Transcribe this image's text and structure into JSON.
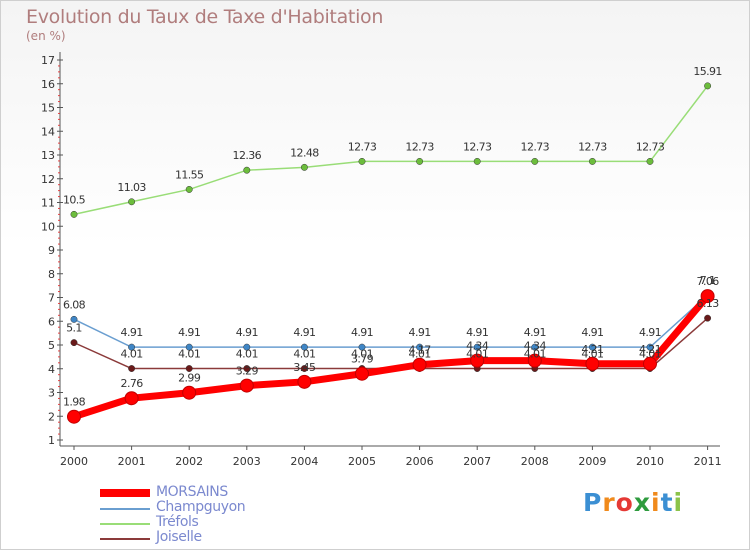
{
  "title": "Evolution du Taux de Taxe d'Habitation",
  "unit": "(en %)",
  "logo": {
    "text": "Proxiti",
    "colors": [
      "#3b8fd3",
      "#f08a1c",
      "#e53935",
      "#2e9b3e",
      "#f08a1c",
      "#3b8fd3",
      "#8bc34a"
    ]
  },
  "chart_data": {
    "type": "line",
    "title": "Evolution du Taux de Taxe d'Habitation",
    "xlabel": "",
    "ylabel": "(en %)",
    "ylim": [
      1,
      17
    ],
    "yticks": [
      "1",
      "2",
      "3",
      "4",
      "5",
      "6",
      "7",
      "8",
      "9",
      "10",
      "11",
      "12",
      "13",
      "14",
      "15",
      "16",
      "17"
    ],
    "categories": [
      "2000",
      "2001",
      "2002",
      "2003",
      "2004",
      "2005",
      "2006",
      "2007",
      "2008",
      "2009",
      "2010",
      "2011"
    ],
    "series": [
      {
        "name": "MORSAINS",
        "color": "#ff0000",
        "markerColor": "#e00000",
        "weight": "heavy",
        "values": [
          1.98,
          2.76,
          2.99,
          3.29,
          3.45,
          3.79,
          4.17,
          4.34,
          4.34,
          4.21,
          4.21,
          7.06
        ],
        "labels": [
          "1.98",
          "2.76",
          "2.99",
          "3.29",
          "3.45",
          "3.79",
          "4.17",
          "4.34",
          "4.34",
          "4.21",
          "4.21",
          "7.06"
        ]
      },
      {
        "name": "Champguyon",
        "color": "#6a9ed0",
        "markerColor": "#3f86c6",
        "weight": "thin",
        "values": [
          6.08,
          4.91,
          4.91,
          4.91,
          4.91,
          4.91,
          4.91,
          4.91,
          4.91,
          4.91,
          4.91,
          7.1
        ],
        "labels": [
          "6.08",
          "4.91",
          "4.91",
          "4.91",
          "4.91",
          "4.91",
          "4.91",
          "4.91",
          "4.91",
          "4.91",
          "4.91",
          "7.1"
        ]
      },
      {
        "name": "Tréfols",
        "color": "#99dd77",
        "markerColor": "#6cbd3c",
        "weight": "thin",
        "values": [
          10.5,
          11.03,
          11.55,
          12.36,
          12.48,
          12.73,
          12.73,
          12.73,
          12.73,
          12.73,
          12.73,
          15.91
        ],
        "labels": [
          "10.5",
          "11.03",
          "11.55",
          "12.36",
          "12.48",
          "12.73",
          "12.73",
          "12.73",
          "12.73",
          "12.73",
          "12.73",
          "15.91"
        ]
      },
      {
        "name": "Joiselle",
        "color": "#8b3a3a",
        "markerColor": "#6a1a1a",
        "weight": "thin",
        "values": [
          5.1,
          4.01,
          4.01,
          4.01,
          4.01,
          4.01,
          4.01,
          4.01,
          4.01,
          4.01,
          4.01,
          6.13
        ],
        "labels": [
          "5.1",
          "4.01",
          "4.01",
          "4.01",
          "4.01",
          "4.01",
          "4.01",
          "4.01",
          "4.01",
          "4.01",
          "4.01",
          "6.13"
        ]
      }
    ],
    "legend": {
      "position": "bottom-left",
      "entries": [
        "MORSAINS",
        "Champguyon",
        "Tréfols",
        "Joiselle"
      ]
    },
    "grid": false
  }
}
